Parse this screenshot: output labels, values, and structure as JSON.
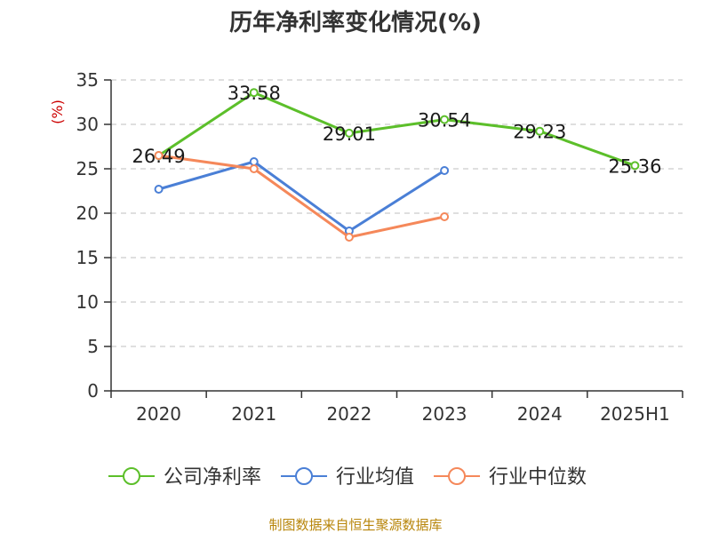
{
  "chart_data": {
    "type": "line",
    "title": "历年净利率变化情况(%)",
    "ylabel": "(%)",
    "xlabel": "",
    "categories": [
      "2020",
      "2021",
      "2022",
      "2023",
      "2024",
      "2025H1"
    ],
    "ylim": [
      0,
      35
    ],
    "yticks": [
      0,
      5,
      10,
      15,
      20,
      25,
      30,
      35
    ],
    "grid": true,
    "legend_position": "bottom",
    "series": [
      {
        "name": "公司净利率",
        "color": "#5cbf2a",
        "values": [
          26.49,
          33.58,
          29.01,
          30.54,
          29.23,
          25.36
        ],
        "show_labels": true
      },
      {
        "name": "行业均值",
        "color": "#4a7fd6",
        "values": [
          22.7,
          25.8,
          18.0,
          24.8,
          null,
          null
        ],
        "show_labels": false
      },
      {
        "name": "行业中位数",
        "color": "#f5885a",
        "values": [
          26.5,
          25.0,
          17.3,
          19.6,
          null,
          null
        ],
        "show_labels": false
      }
    ],
    "source": "制图数据来自恒生聚源数据库"
  }
}
